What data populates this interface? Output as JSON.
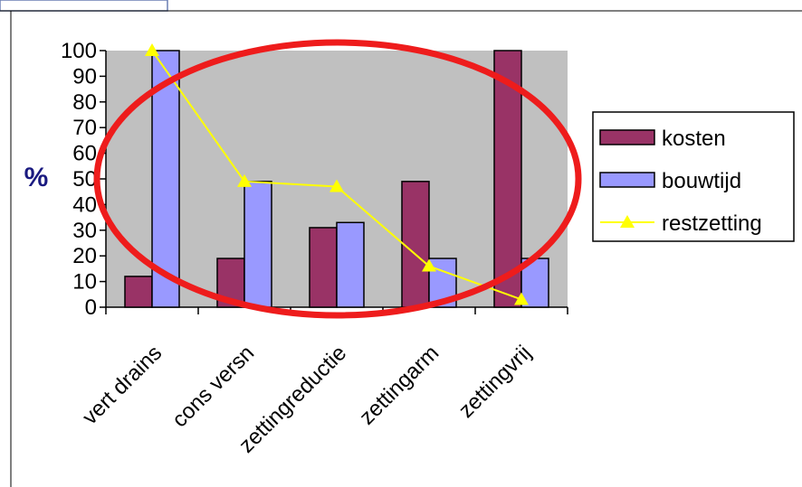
{
  "chart_data": {
    "type": "bar",
    "categories": [
      "vert drains",
      "cons versn",
      "zettingreductie",
      "zettingarm",
      "zettingvrij"
    ],
    "series": [
      {
        "name": "kosten",
        "kind": "bar",
        "color": "#993366",
        "values": [
          12,
          19,
          31,
          49,
          100
        ]
      },
      {
        "name": "bouwtijd",
        "kind": "bar",
        "color": "#9999ff",
        "values": [
          100,
          49,
          33,
          19,
          19
        ]
      },
      {
        "name": "restzetting",
        "kind": "line",
        "color": "#ffff00",
        "values": [
          100,
          49,
          47,
          16,
          3
        ]
      }
    ],
    "ylabel": "%",
    "ylim": [
      0,
      100
    ],
    "yticks": [
      0,
      10,
      20,
      30,
      40,
      50,
      60,
      70,
      80,
      90,
      100
    ],
    "plot_background": "#c0c0c0",
    "highlight_color": "#ee1c1c",
    "legend_position": "right",
    "grid": false
  }
}
